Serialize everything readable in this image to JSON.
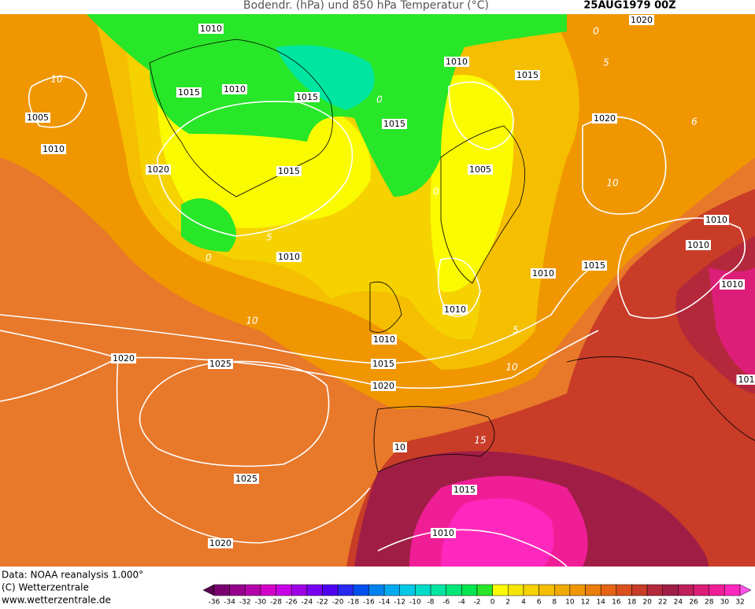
{
  "header": {
    "title": "Bodendr. (hPa) und 850 hPa Temperatur (°C)",
    "date": "25AUG1979 00Z"
  },
  "footer": {
    "source": "Data: NOAA reanalysis 1.000°",
    "copyright": "(C) Wetterzentrale",
    "url": "www.wetterzentrale.de"
  },
  "isobar_labels": [
    "1010",
    "1020",
    "1010",
    "1015",
    "1015",
    "1010",
    "1015",
    "1005",
    "1020",
    "1015",
    "1010",
    "1020",
    "1005",
    "1015",
    "1010",
    "1010",
    "1010",
    "1015",
    "1010",
    "1010",
    "1010",
    "1010",
    "1015",
    "1020",
    "1025",
    "1020",
    "101",
    "10",
    "1025",
    "1015",
    "1010",
    "1020"
  ],
  "temperature_labels": [
    "10",
    "0",
    "5",
    "0",
    "10",
    "0",
    "5",
    "0",
    "10",
    "5",
    "10",
    "15",
    "6"
  ],
  "colorbar": {
    "labels": [
      -36,
      -34,
      -32,
      -30,
      -28,
      -26,
      -24,
      -22,
      -20,
      -18,
      -16,
      -14,
      -12,
      -10,
      -8,
      -6,
      -4,
      -2,
      0,
      2,
      4,
      6,
      8,
      10,
      12,
      14,
      16,
      18,
      20,
      22,
      24,
      26,
      28,
      30,
      32
    ],
    "colors": [
      "#5a0050",
      "#7a0070",
      "#96008c",
      "#b400aa",
      "#d200c8",
      "#c800e6",
      "#a000e6",
      "#7800f0",
      "#5000f0",
      "#2828f0",
      "#0050f0",
      "#0082f0",
      "#00aaf0",
      "#00c8e6",
      "#00dcc8",
      "#00e6a0",
      "#00e678",
      "#00e650",
      "#28e628",
      "#fafa00",
      "#f5e600",
      "#f5d200",
      "#f5be00",
      "#f0aa00",
      "#f09600",
      "#eb7d0a",
      "#e66414",
      "#dc501e",
      "#c83c28",
      "#b4283c",
      "#a01e46",
      "#be1e5a",
      "#dc1e78",
      "#f01e96",
      "#ff28be",
      "#ff50e6"
    ]
  }
}
